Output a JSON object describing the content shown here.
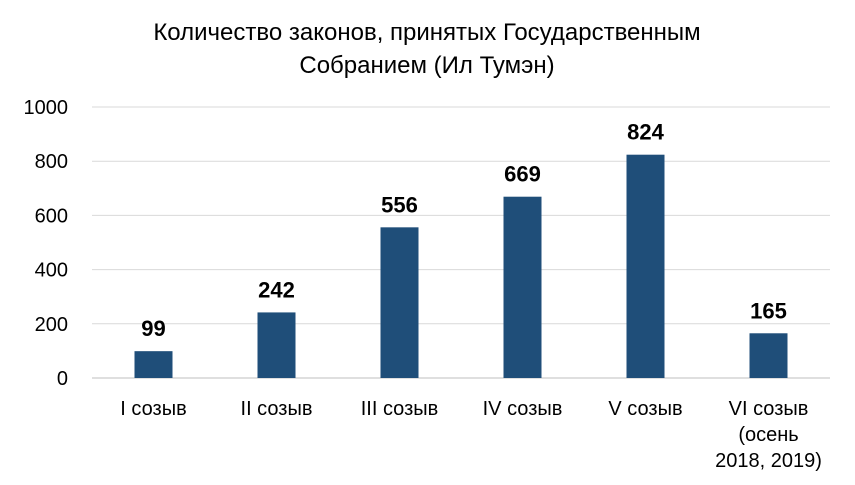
{
  "chart_data": {
    "type": "bar",
    "title_lines": [
      "Количество законов, принятых Государственным",
      "Собранием (Ил Тумэн)"
    ],
    "categories": [
      [
        "I созыв"
      ],
      [
        "II созыв"
      ],
      [
        "III созыв"
      ],
      [
        "IV созыв"
      ],
      [
        "V созыв"
      ],
      [
        "VI созыв",
        "(осень",
        "2018, 2019)"
      ]
    ],
    "values": [
      99,
      242,
      556,
      669,
      824,
      165
    ],
    "ylim": [
      0,
      1000
    ],
    "yticks": [
      0,
      200,
      400,
      600,
      800,
      1000
    ],
    "grid": true,
    "legend": "none",
    "colors": {
      "bar": "#1f4e79",
      "grid": "#d9d9d9",
      "axis": "#bfbfbf"
    }
  }
}
